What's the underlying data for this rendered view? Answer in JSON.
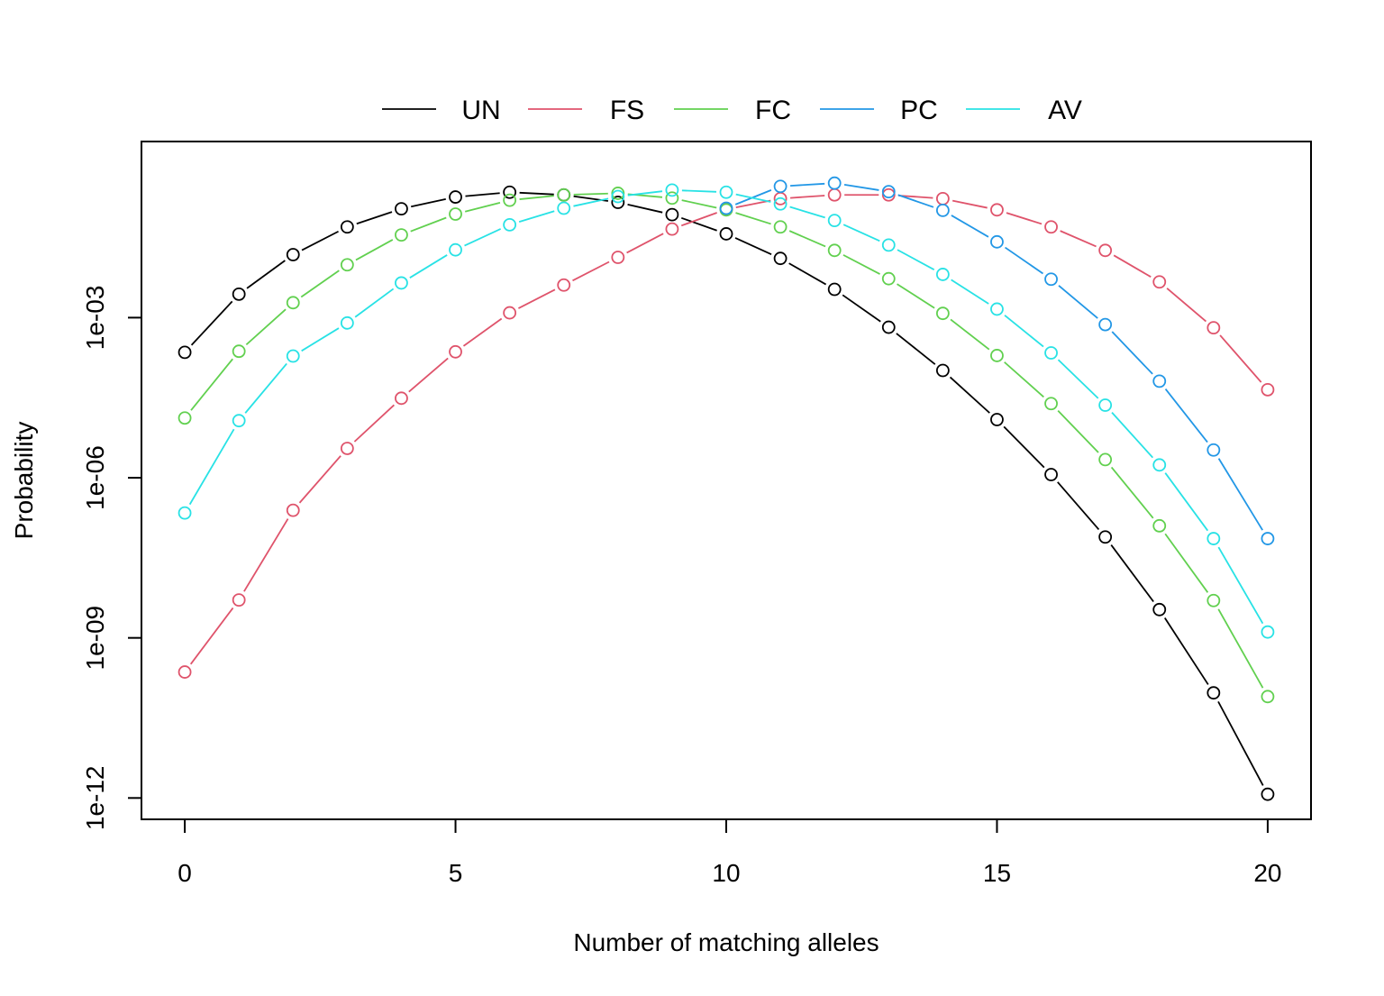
{
  "chart_data": {
    "type": "line",
    "title": "",
    "xlabel": "Number of matching alleles",
    "ylabel": "Probability",
    "x": [
      0,
      1,
      2,
      3,
      4,
      5,
      6,
      7,
      8,
      9,
      10,
      11,
      12,
      13,
      14,
      15,
      16,
      17,
      18,
      19,
      20
    ],
    "xlim": [
      -0.8,
      20.8
    ],
    "xticks": [
      0,
      5,
      10,
      15,
      20
    ],
    "xtick_labels": [
      "0",
      "5",
      "10",
      "15",
      "20"
    ],
    "y_scale": "log",
    "ylim_log10": [
      -12.4,
      0.3
    ],
    "yticks_log10": [
      -12,
      -9,
      -6,
      -3
    ],
    "ytick_labels": [
      "1e-12",
      "1e-09",
      "1e-06",
      "1e-03"
    ],
    "grid": false,
    "legend_position": "top-center",
    "marker": "open-circle",
    "series": [
      {
        "name": "UN",
        "color": "#000000",
        "log10_values": [
          -3.65,
          -2.56,
          -1.82,
          -1.3,
          -0.96,
          -0.74,
          -0.65,
          -0.7,
          -0.84,
          -1.07,
          -1.43,
          -1.89,
          -2.47,
          -3.18,
          -3.99,
          -4.91,
          -5.94,
          -7.11,
          -8.47,
          -10.03,
          -11.93
        ]
      },
      {
        "name": "FS",
        "color": "#DF536B",
        "log10_values": [
          -9.64,
          -8.29,
          -6.61,
          -5.45,
          -4.51,
          -3.64,
          -2.91,
          -2.39,
          -1.87,
          -1.34,
          -0.97,
          -0.77,
          -0.7,
          -0.7,
          -0.77,
          -0.98,
          -1.3,
          -1.74,
          -2.33,
          -3.19,
          -4.35
        ]
      },
      {
        "name": "FC",
        "color": "#61D04F",
        "log10_values": [
          -4.88,
          -3.63,
          -2.72,
          -2.01,
          -1.45,
          -1.06,
          -0.8,
          -0.7,
          -0.67,
          -0.76,
          -0.98,
          -1.3,
          -1.74,
          -2.27,
          -2.92,
          -3.71,
          -4.61,
          -5.66,
          -6.9,
          -8.3,
          -10.1
        ]
      },
      {
        "name": "PC",
        "color": "#2297E6",
        "log10_values": [
          null,
          null,
          null,
          null,
          null,
          null,
          null,
          null,
          null,
          null,
          -0.95,
          -0.54,
          -0.48,
          -0.64,
          -0.99,
          -1.58,
          -2.28,
          -3.13,
          -4.19,
          -5.48,
          -7.14
        ]
      },
      {
        "name": "AV",
        "color": "#28E2E5",
        "log10_values": [
          -6.66,
          -4.93,
          -3.72,
          -3.1,
          -2.35,
          -1.73,
          -1.26,
          -0.95,
          -0.73,
          -0.61,
          -0.65,
          -0.87,
          -1.18,
          -1.64,
          -2.19,
          -2.84,
          -3.66,
          -4.64,
          -5.76,
          -7.14,
          -8.89
        ]
      }
    ]
  }
}
